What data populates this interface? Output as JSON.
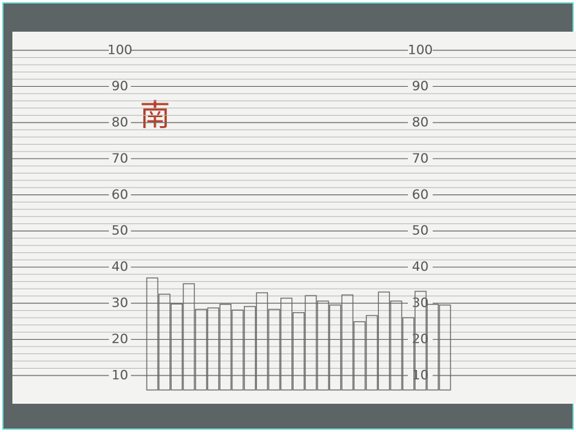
{
  "chart_data": {
    "type": "bar",
    "values": [
      37,
      32.5,
      29.8,
      35.4,
      28.3,
      28.7,
      29.7,
      28.1,
      29.1,
      32.9,
      28.3,
      31.4,
      27.4,
      32.1,
      30.6,
      29.5,
      32.3,
      24.9,
      26.6,
      33.1,
      30.6,
      26,
      33.3,
      29.7,
      29.5
    ],
    "color": "#666666",
    "ylim": [
      6,
      104
    ],
    "yticks": [
      10,
      20,
      30,
      40,
      50,
      60,
      70,
      80,
      90,
      100
    ],
    "grid": true,
    "annotation": "南"
  }
}
